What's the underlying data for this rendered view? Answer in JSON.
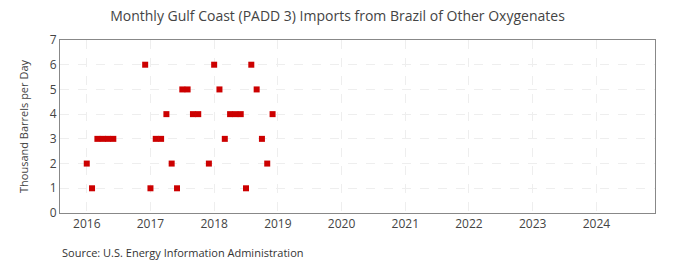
{
  "chart_data": {
    "type": "scatter",
    "title": "Monthly Gulf Coast (PADD 3) Imports from Brazil of Other Oxygenates",
    "ylabel": "Thousand Barrels per Day",
    "annotations": [
      "Source: U.S. Energy Information Administration"
    ],
    "x": [
      2016.0,
      2016.083,
      2016.167,
      2016.25,
      2016.333,
      2016.417,
      2016.917,
      2017.0,
      2017.083,
      2017.167,
      2017.25,
      2017.333,
      2017.417,
      2017.5,
      2017.583,
      2017.667,
      2017.75,
      2017.917,
      2018.0,
      2018.083,
      2018.167,
      2018.25,
      2018.333,
      2018.417,
      2018.5,
      2018.583,
      2018.667,
      2018.75,
      2018.833,
      2018.917
    ],
    "values": [
      2,
      1,
      3,
      3,
      3,
      3,
      6,
      1,
      3,
      3,
      4,
      2,
      1,
      5,
      5,
      4,
      4,
      2,
      6,
      5,
      3,
      4,
      4,
      4,
      1,
      6,
      5,
      3,
      2,
      4
    ],
    "color": "#cc0000",
    "marker": "square",
    "xlim": [
      2015.58,
      2024.92
    ],
    "ylim": [
      0,
      7
    ],
    "xticks": [
      2016,
      2017,
      2018,
      2019,
      2020,
      2021,
      2022,
      2023,
      2024
    ],
    "yticks": [
      0,
      1,
      2,
      3,
      4,
      5,
      6,
      7
    ],
    "grid": true
  }
}
